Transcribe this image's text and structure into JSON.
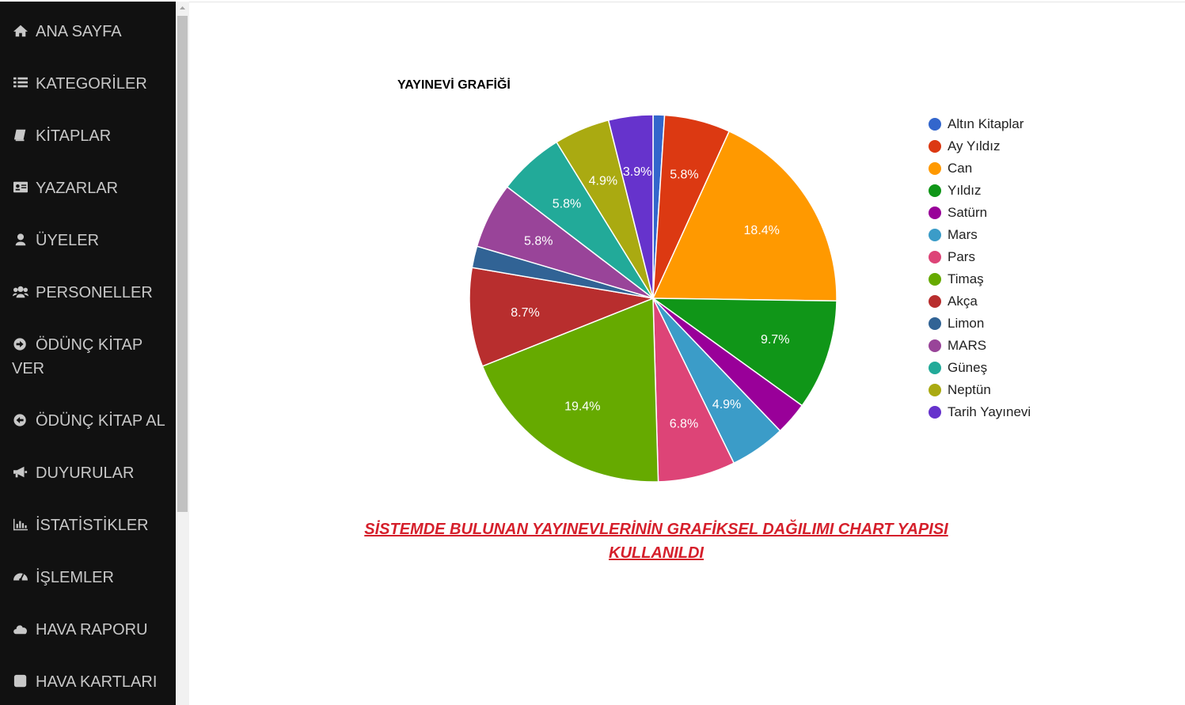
{
  "sidebar": {
    "items": [
      {
        "label": "ANA SAYFA",
        "icon": "home-icon"
      },
      {
        "label": "KATEGORİLER",
        "icon": "list-icon"
      },
      {
        "label": "KİTAPLAR",
        "icon": "book-icon"
      },
      {
        "label": "YAZARLAR",
        "icon": "id-card-icon"
      },
      {
        "label": "ÜYELER",
        "icon": "user-icon"
      },
      {
        "label": "PERSONELLER",
        "icon": "users-icon"
      },
      {
        "label": "ÖDÜNÇ KİTAP VER",
        "icon": "arrow-circle-right-icon"
      },
      {
        "label": "ÖDÜNÇ KİTAP AL",
        "icon": "arrow-circle-left-icon"
      },
      {
        "label": "DUYURULAR",
        "icon": "megaphone-icon"
      },
      {
        "label": "İSTATİSTİKLER",
        "icon": "bar-chart-icon"
      },
      {
        "label": "İŞLEMLER",
        "icon": "dashboard-icon"
      },
      {
        "label": "HAVA RAPORU",
        "icon": "cloud-icon"
      },
      {
        "label": "HAVA KARTLARI",
        "icon": "square-icon"
      }
    ]
  },
  "caption": "SİSTEMDE BULUNAN YAYINEVLERİNİN GRAFİKSEL DAĞILIMI CHART YAPISI KULLANILDI",
  "chart_data": {
    "type": "pie",
    "title": "YAYINEVİ GRAFİĞİ",
    "legend_position": "right",
    "categories": [
      "Altın Kitaplar",
      "Ay Yıldız",
      "Can",
      "Yıldız",
      "Satürn",
      "Mars",
      "Pars",
      "Timaş",
      "Akça",
      "Limon",
      "MARS",
      "Güneş",
      "Neptün",
      "Tarih Yayınevi"
    ],
    "values": [
      1.0,
      5.8,
      18.4,
      9.7,
      2.9,
      4.9,
      6.8,
      19.4,
      8.7,
      1.9,
      5.8,
      5.8,
      4.9,
      3.9
    ],
    "labels": [
      "",
      "5.8%",
      "18.4%",
      "9.7%",
      "",
      "4.9%",
      "6.8%",
      "19.4%",
      "8.7%",
      "",
      "5.8%",
      "5.8%",
      "4.9%",
      "3.9%"
    ],
    "colors": [
      "#3366cc",
      "#dc3912",
      "#ff9900",
      "#109618",
      "#990099",
      "#3b9cc8",
      "#dd4477",
      "#66aa00",
      "#b82e2e",
      "#316395",
      "#994499",
      "#22aa99",
      "#aaaa11",
      "#6633cc"
    ]
  }
}
